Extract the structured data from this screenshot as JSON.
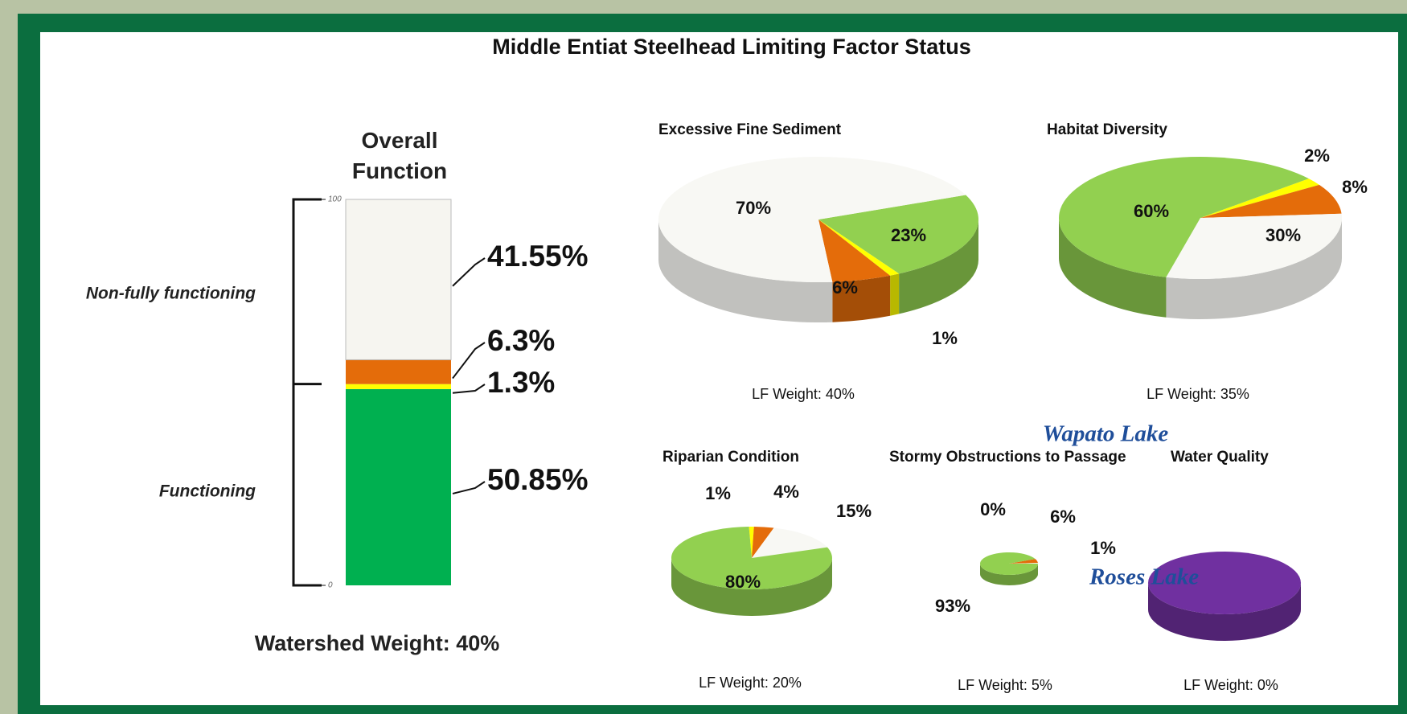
{
  "title": "Middle Entiat Steelhead Limiting Factor Status",
  "map_labels": [
    "Wapato Lake",
    "Roses Lake"
  ],
  "chart_data": [
    {
      "type": "stacked_bar",
      "title": "Overall Function",
      "ylim": [
        0,
        100
      ],
      "yticks": [
        0,
        100
      ],
      "series": [
        {
          "color": "#00b050",
          "values": [
            50.85
          ],
          "value_labels": [
            "50.85%"
          ]
        },
        {
          "color": "#ffff00",
          "values": [
            1.3
          ],
          "value_labels": [
            "1.3%"
          ]
        },
        {
          "color": "#e46c0a",
          "values": [
            6.3
          ],
          "value_labels": [
            "6.3%"
          ]
        },
        {
          "color": "#f6f5f0",
          "values": [
            41.55
          ],
          "value_labels": [
            "41.55%"
          ]
        }
      ],
      "annotations": [
        "Non-fully functioning",
        "Functioning"
      ],
      "footnote": "Watershed Weight:  40%"
    },
    {
      "type": "pie",
      "title": "Excessive Fine Sediment",
      "values": [
        23,
        1,
        6,
        70
      ],
      "value_labels": [
        "23%",
        "1%",
        "6%",
        "70%"
      ],
      "colors": [
        "#92d050",
        "#ffff00",
        "#e46c0a",
        "#f8f8f4"
      ],
      "footnote": "LF Weight:  40%"
    },
    {
      "type": "pie",
      "title": "Habitat Diversity",
      "values": [
        2,
        8,
        30,
        60
      ],
      "value_labels": [
        "2%",
        "8%",
        "30%",
        "60%"
      ],
      "colors": [
        "#ffff00",
        "#e46c0a",
        "#f8f8f4",
        "#92d050"
      ],
      "footnote": "LF Weight:  35%"
    },
    {
      "type": "pie",
      "title": "Riparian Condition",
      "values": [
        1,
        4,
        15,
        80
      ],
      "value_labels": [
        "1%",
        "4%",
        "15%",
        "80%"
      ],
      "colors": [
        "#ffff00",
        "#e46c0a",
        "#f8f8f4",
        "#92d050"
      ],
      "footnote": "LF Weight:  20%"
    },
    {
      "type": "pie",
      "title": "Stormy Obstructions to Passage",
      "values": [
        0,
        6,
        1,
        93
      ],
      "value_labels": [
        "0%",
        "6%",
        "1%",
        "93%"
      ],
      "colors": [
        "#ffff00",
        "#e46c0a",
        "#f8f8f4",
        "#92d050"
      ],
      "footnote": "LF Weight:  5%"
    },
    {
      "type": "pie",
      "title": "Water Quality",
      "values": [
        100
      ],
      "colors": [
        "#7030a0"
      ],
      "footnote": "LF Weight:  0%"
    }
  ]
}
